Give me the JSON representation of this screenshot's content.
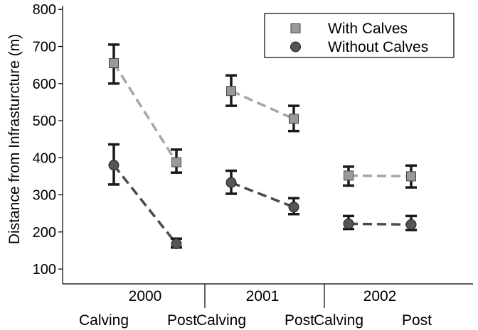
{
  "chart_data": {
    "type": "scatter",
    "ylabel": "Distance from Infrasturcture (m)",
    "ylim": [
      60,
      810
    ],
    "yticks": [
      100,
      200,
      300,
      400,
      500,
      600,
      700,
      800
    ],
    "groups": [
      {
        "label": "2000",
        "periods": [
          "Calving",
          "Post"
        ]
      },
      {
        "label": "2001",
        "periods": [
          "Calving",
          "Post"
        ]
      },
      {
        "label": "2002",
        "periods": [
          "Calving",
          "Post"
        ]
      }
    ],
    "legend_position": "top-right",
    "series": [
      {
        "name": "With Calves",
        "marker": "square",
        "color": "#999999",
        "line_color": "#a6a6a6",
        "points": [
          {
            "year": "2000",
            "period": "Calving",
            "y": 655,
            "lo": 600,
            "hi": 705
          },
          {
            "year": "2000",
            "period": "Post",
            "y": 388,
            "lo": 360,
            "hi": 422
          },
          {
            "year": "2001",
            "period": "Calving",
            "y": 580,
            "lo": 540,
            "hi": 622
          },
          {
            "year": "2001",
            "period": "Post",
            "y": 505,
            "lo": 472,
            "hi": 540
          },
          {
            "year": "2002",
            "period": "Calving",
            "y": 352,
            "lo": 325,
            "hi": 376
          },
          {
            "year": "2002",
            "period": "Post",
            "y": 350,
            "lo": 320,
            "hi": 379
          }
        ]
      },
      {
        "name": "Without Calves",
        "marker": "circle",
        "color": "#555555",
        "line_color": "#4a4a4a",
        "points": [
          {
            "year": "2000",
            "period": "Calving",
            "y": 380,
            "lo": 328,
            "hi": 436
          },
          {
            "year": "2000",
            "period": "Post",
            "y": 168,
            "lo": 158,
            "hi": 182
          },
          {
            "year": "2001",
            "period": "Calving",
            "y": 333,
            "lo": 303,
            "hi": 365
          },
          {
            "year": "2001",
            "period": "Post",
            "y": 267,
            "lo": 248,
            "hi": 291
          },
          {
            "year": "2002",
            "period": "Calving",
            "y": 222,
            "lo": 208,
            "hi": 243
          },
          {
            "year": "2002",
            "period": "Post",
            "y": 220,
            "lo": 205,
            "hi": 243
          }
        ]
      }
    ]
  }
}
